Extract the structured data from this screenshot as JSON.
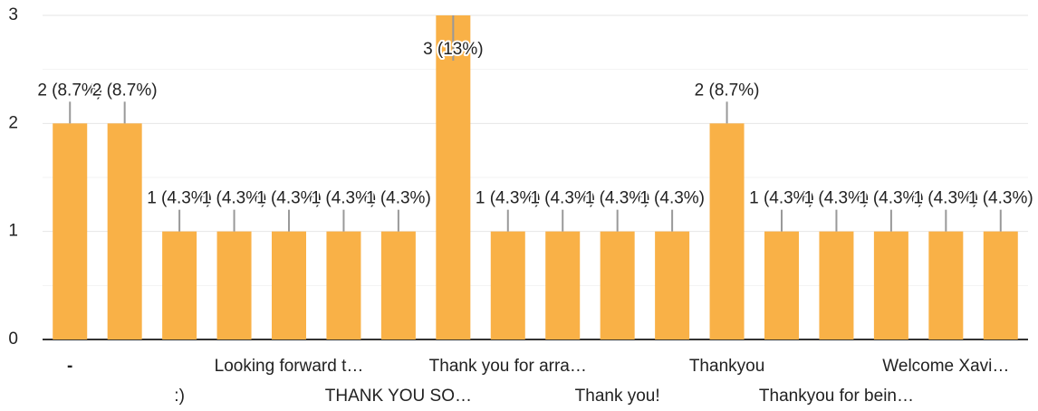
{
  "chart_data": {
    "type": "bar",
    "categories": [
      "-",
      null,
      ":)",
      null,
      "Looking forward t…",
      null,
      "THANK YOU SO…",
      null,
      "Thank you for arra…",
      null,
      "Thank you!",
      null,
      "Thankyou",
      null,
      "Thankyou for bein…",
      null,
      "Welcome Xavi…",
      null
    ],
    "values": [
      2,
      2,
      1,
      1,
      1,
      1,
      1,
      3,
      1,
      1,
      1,
      1,
      2,
      1,
      1,
      1,
      1,
      1
    ],
    "value_labels": [
      "2 (8.7%)",
      "2 (8.7%)",
      "1 (4.3%)",
      "1 (4.3%)",
      "1 (4.3%)",
      "1 (4.3%)",
      "1 (4.3%)",
      "3 (13%)",
      "1 (4.3%)",
      "1 (4.3%)",
      "1 (4.3%)",
      "1 (4.3%)",
      "2 (8.7%)",
      "1 (4.3%)",
      "1 (4.3%)",
      "1 (4.3%)",
      "1 (4.3%)",
      "1 (4.3%)"
    ],
    "color": "#f9b147",
    "ylim": [
      0,
      3
    ],
    "yticks": [
      0,
      1,
      2,
      3
    ],
    "grid": true
  }
}
